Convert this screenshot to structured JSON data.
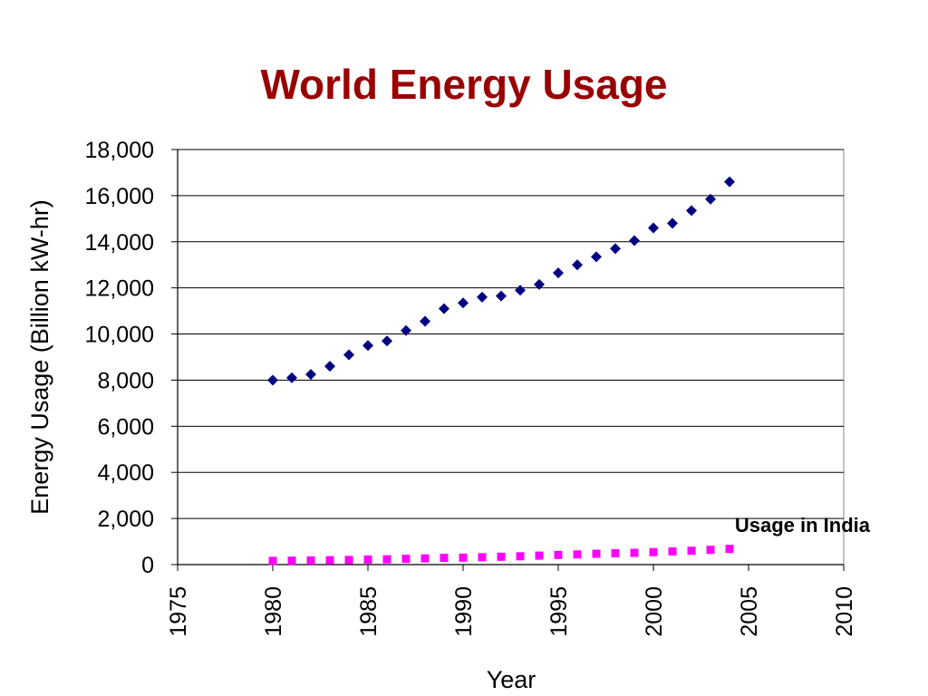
{
  "chart_data": {
    "type": "scatter",
    "title": "World Energy Usage",
    "xlabel": "Year",
    "ylabel": "Energy Usage (Billion kW-hr)",
    "xlim": [
      1975,
      2010
    ],
    "ylim": [
      0,
      18000
    ],
    "x_ticks": [
      1975,
      1980,
      1985,
      1990,
      1995,
      2000,
      2005,
      2010
    ],
    "y_ticks": [
      0,
      2000,
      4000,
      6000,
      8000,
      10000,
      12000,
      14000,
      16000,
      18000
    ],
    "y_tick_labels": [
      "0",
      "2,000",
      "4,000",
      "6,000",
      "8,000",
      "10,000",
      "12,000",
      "14,000",
      "16,000",
      "18,000"
    ],
    "grid": "horizontal",
    "series": [
      {
        "marker": "diamond",
        "color": "#000080",
        "x": [
          1980,
          1981,
          1982,
          1983,
          1984,
          1985,
          1986,
          1987,
          1988,
          1989,
          1990,
          1991,
          1992,
          1993,
          1994,
          1995,
          1996,
          1997,
          1998,
          1999,
          2000,
          2001,
          2002,
          2003,
          2004
        ],
        "y": [
          8000,
          8100,
          8250,
          8600,
          9100,
          9500,
          9700,
          10150,
          10550,
          11100,
          11350,
          11600,
          11650,
          11900,
          12150,
          12650,
          13000,
          13350,
          13700,
          14050,
          14600,
          14800,
          15350,
          15850,
          16600
        ]
      },
      {
        "name": "Usage in India",
        "marker": "square",
        "color": "#ff00ff",
        "x": [
          1980,
          1981,
          1982,
          1983,
          1984,
          1985,
          1986,
          1987,
          1988,
          1989,
          1990,
          1991,
          1992,
          1993,
          1994,
          1995,
          1996,
          1997,
          1998,
          1999,
          2000,
          2001,
          2002,
          2003,
          2004
        ],
        "y": [
          160,
          170,
          180,
          190,
          200,
          220,
          230,
          250,
          270,
          290,
          300,
          320,
          340,
          360,
          390,
          420,
          440,
          470,
          490,
          510,
          540,
          570,
          600,
          640,
          680
        ]
      }
    ],
    "annotations": [
      {
        "text": "Usage in India"
      }
    ]
  }
}
